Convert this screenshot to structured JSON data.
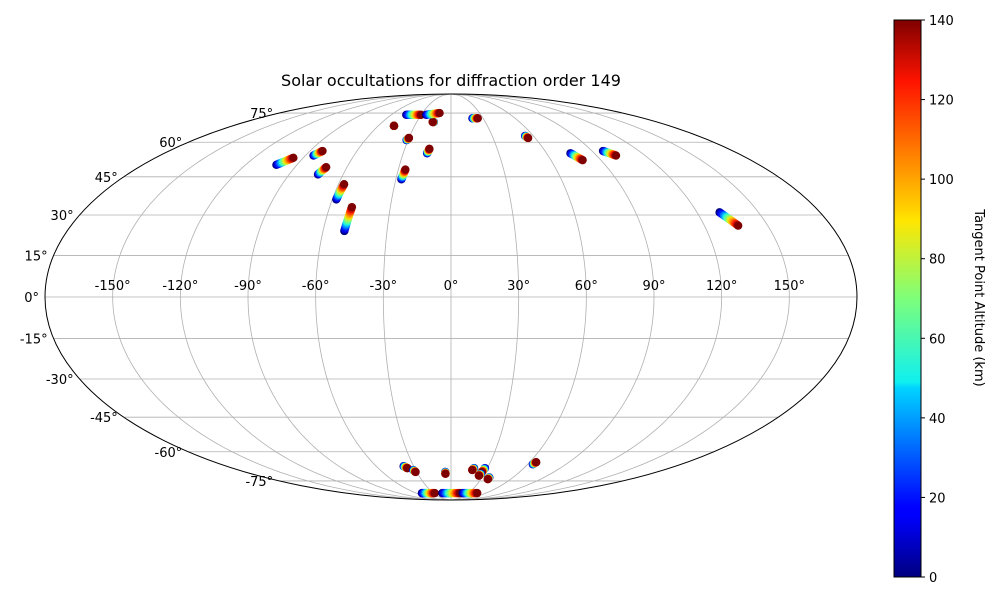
{
  "chart_data": {
    "type": "scatter",
    "projection": "mollweide",
    "title": "Solar occultations for diffraction order 149",
    "grid": true,
    "x_axis": {
      "quantity": "longitude",
      "range": [
        -180,
        180
      ],
      "ticks": [
        -150,
        -120,
        -90,
        -60,
        -30,
        0,
        30,
        60,
        90,
        120,
        150
      ],
      "tick_labels": [
        "-150°",
        "-120°",
        "-90°",
        "-60°",
        "-30°",
        "0°",
        "30°",
        "60°",
        "90°",
        "120°",
        "150°"
      ]
    },
    "y_axis": {
      "quantity": "latitude",
      "range": [
        -90,
        90
      ],
      "ticks": [
        -75,
        -60,
        -45,
        -30,
        -15,
        0,
        15,
        30,
        45,
        60,
        75
      ],
      "tick_labels": [
        "-75°",
        "-60°",
        "-45°",
        "-30°",
        "-15°",
        "0°",
        "15°",
        "30°",
        "45°",
        "60°",
        "75°"
      ]
    },
    "colorbar": {
      "label": "Tangent Point Altitude (km)",
      "colormap": "jet",
      "range": [
        0,
        140
      ],
      "ticks": [
        0,
        20,
        40,
        60,
        80,
        100,
        120,
        140
      ],
      "tick_labels": [
        "0",
        "20",
        "40",
        "60",
        "80",
        "100",
        "120",
        "140"
      ],
      "placement": "right"
    },
    "tracks": [
      {
        "lon_start": -102,
        "lat_start": 50,
        "lon_end": -96,
        "lat_end": 53
      },
      {
        "lon_start": -85,
        "lat_start": 54,
        "lon_end": -82,
        "lat_end": 56
      },
      {
        "lon_start": -74,
        "lat_start": 46,
        "lon_end": -72,
        "lat_end": 49
      },
      {
        "lon_start": -58,
        "lat_start": 36,
        "lon_end": -57,
        "lat_end": 42
      },
      {
        "lon_start": -50,
        "lat_start": 24,
        "lon_end": -49,
        "lat_end": 33
      },
      {
        "lon_start": -47,
        "lat_start": 68,
        "lon_end": -47,
        "lat_end": 68
      },
      {
        "lon_start": -31,
        "lat_start": 61,
        "lon_end": -30,
        "lat_end": 62
      },
      {
        "lon_start": -27,
        "lat_start": 44,
        "lon_end": -26,
        "lat_end": 48
      },
      {
        "lon_start": -15,
        "lat_start": 55,
        "lon_end": -14,
        "lat_end": 57
      },
      {
        "lon_start": -15,
        "lat_start": 70,
        "lon_end": -16,
        "lat_end": 70
      },
      {
        "lon_start": -45,
        "lat_start": 74,
        "lon_end": -30,
        "lat_end": 74
      },
      {
        "lon_start": -25,
        "lat_start": 74,
        "lon_end": -12,
        "lat_end": 75
      },
      {
        "lon_start": 20,
        "lat_start": 72,
        "lon_end": 25,
        "lat_end": 72
      },
      {
        "lon_start": 54,
        "lat_start": 63,
        "lon_end": 55,
        "lat_end": 62
      },
      {
        "lon_start": 75,
        "lat_start": 55,
        "lon_end": 79,
        "lat_end": 52
      },
      {
        "lon_start": 97,
        "lat_start": 56,
        "lon_end": 102,
        "lat_end": 54
      },
      {
        "lon_start": 131,
        "lat_start": 31,
        "lon_end": 136,
        "lat_end": 26
      },
      {
        "lon_start": -38,
        "lat_start": -67,
        "lon_end": -36,
        "lat_end": -68
      },
      {
        "lon_start": -32,
        "lat_start": -69,
        "lon_end": -31,
        "lat_end": -70
      },
      {
        "lon_start": -5,
        "lat_start": -70,
        "lon_end": -5,
        "lat_end": -71
      },
      {
        "lon_start": 19,
        "lat_start": -68,
        "lon_end": 18,
        "lat_end": -69
      },
      {
        "lon_start": 28,
        "lat_start": -68,
        "lon_end": 27,
        "lat_end": -70
      },
      {
        "lon_start": 27,
        "lat_start": -71,
        "lon_end": 26,
        "lat_end": -72
      },
      {
        "lon_start": 37,
        "lat_start": -73,
        "lon_end": 37,
        "lat_end": -74
      },
      {
        "lon_start": 64,
        "lat_start": -66,
        "lon_end": 65,
        "lat_end": -65
      },
      {
        "lon_start": -50,
        "lat_start": -83,
        "lon_end": -28,
        "lat_end": -83
      },
      {
        "lon_start": -15,
        "lat_start": -83,
        "lon_end": 15,
        "lat_end": -83
      },
      {
        "lon_start": 20,
        "lat_start": -83,
        "lon_end": 45,
        "lat_end": -83
      }
    ]
  }
}
